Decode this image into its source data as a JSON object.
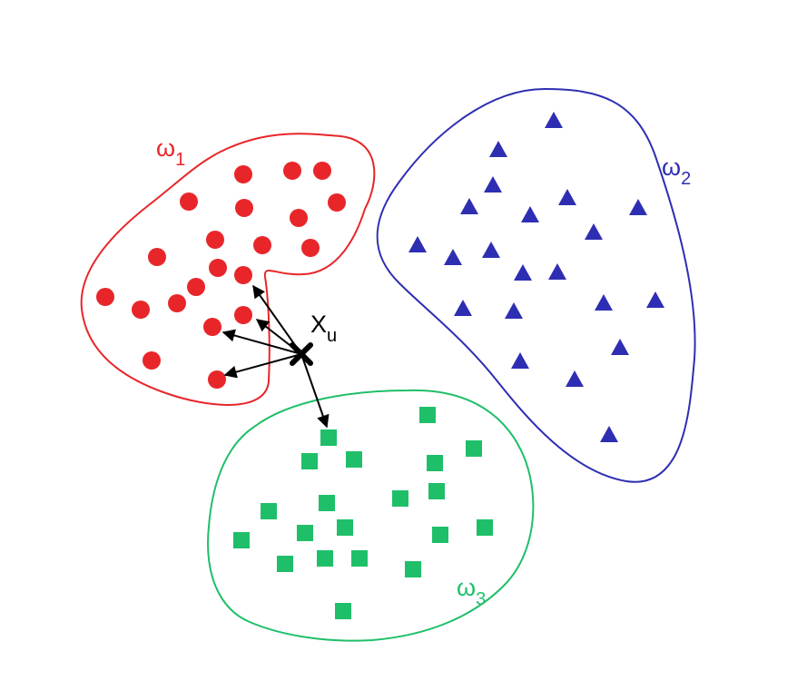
{
  "clusters": [
    {
      "id": "w1",
      "label_main": "ω",
      "label_sub": "1",
      "color": "#e8262a",
      "marker": "circle"
    },
    {
      "id": "w2",
      "label_main": "ω",
      "label_sub": "2",
      "color": "#2e2eb3",
      "marker": "triangle"
    },
    {
      "id": "w3",
      "label_main": "ω",
      "label_sub": "3",
      "color": "#1fbf6a",
      "marker": "square"
    }
  ],
  "query": {
    "label_main": "X",
    "label_sub": "u",
    "color": "#000000",
    "marker": "cross"
  }
}
